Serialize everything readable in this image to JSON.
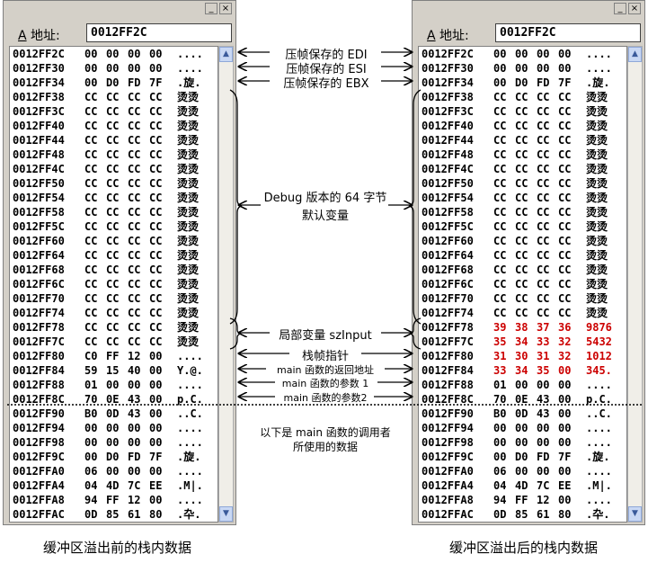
{
  "window": {
    "address_label": "地址:",
    "address_hotkey": "A",
    "address_value": "0012FF2C",
    "minimize_glyph": "_",
    "close_glyph": "×"
  },
  "before": {
    "caption": "缓冲区溢出前的栈内数据",
    "rows": [
      {
        "addr": "0012FF2C",
        "bytes": [
          "00",
          "00",
          "00",
          "00"
        ],
        "ascii": "....",
        "hl": false
      },
      {
        "addr": "0012FF30",
        "bytes": [
          "00",
          "00",
          "00",
          "00"
        ],
        "ascii": "....",
        "hl": false
      },
      {
        "addr": "0012FF34",
        "bytes": [
          "00",
          "D0",
          "FD",
          "7F"
        ],
        "ascii": ".旋.",
        "hl": false
      },
      {
        "addr": "0012FF38",
        "bytes": [
          "CC",
          "CC",
          "CC",
          "CC"
        ],
        "ascii": "烫烫",
        "hl": false
      },
      {
        "addr": "0012FF3C",
        "bytes": [
          "CC",
          "CC",
          "CC",
          "CC"
        ],
        "ascii": "烫烫",
        "hl": false
      },
      {
        "addr": "0012FF40",
        "bytes": [
          "CC",
          "CC",
          "CC",
          "CC"
        ],
        "ascii": "烫烫",
        "hl": false
      },
      {
        "addr": "0012FF44",
        "bytes": [
          "CC",
          "CC",
          "CC",
          "CC"
        ],
        "ascii": "烫烫",
        "hl": false
      },
      {
        "addr": "0012FF48",
        "bytes": [
          "CC",
          "CC",
          "CC",
          "CC"
        ],
        "ascii": "烫烫",
        "hl": false
      },
      {
        "addr": "0012FF4C",
        "bytes": [
          "CC",
          "CC",
          "CC",
          "CC"
        ],
        "ascii": "烫烫",
        "hl": false
      },
      {
        "addr": "0012FF50",
        "bytes": [
          "CC",
          "CC",
          "CC",
          "CC"
        ],
        "ascii": "烫烫",
        "hl": false
      },
      {
        "addr": "0012FF54",
        "bytes": [
          "CC",
          "CC",
          "CC",
          "CC"
        ],
        "ascii": "烫烫",
        "hl": false
      },
      {
        "addr": "0012FF58",
        "bytes": [
          "CC",
          "CC",
          "CC",
          "CC"
        ],
        "ascii": "烫烫",
        "hl": false
      },
      {
        "addr": "0012FF5C",
        "bytes": [
          "CC",
          "CC",
          "CC",
          "CC"
        ],
        "ascii": "烫烫",
        "hl": false
      },
      {
        "addr": "0012FF60",
        "bytes": [
          "CC",
          "CC",
          "CC",
          "CC"
        ],
        "ascii": "烫烫",
        "hl": false
      },
      {
        "addr": "0012FF64",
        "bytes": [
          "CC",
          "CC",
          "CC",
          "CC"
        ],
        "ascii": "烫烫",
        "hl": false
      },
      {
        "addr": "0012FF68",
        "bytes": [
          "CC",
          "CC",
          "CC",
          "CC"
        ],
        "ascii": "烫烫",
        "hl": false
      },
      {
        "addr": "0012FF6C",
        "bytes": [
          "CC",
          "CC",
          "CC",
          "CC"
        ],
        "ascii": "烫烫",
        "hl": false
      },
      {
        "addr": "0012FF70",
        "bytes": [
          "CC",
          "CC",
          "CC",
          "CC"
        ],
        "ascii": "烫烫",
        "hl": false
      },
      {
        "addr": "0012FF74",
        "bytes": [
          "CC",
          "CC",
          "CC",
          "CC"
        ],
        "ascii": "烫烫",
        "hl": false
      },
      {
        "addr": "0012FF78",
        "bytes": [
          "CC",
          "CC",
          "CC",
          "CC"
        ],
        "ascii": "烫烫",
        "hl": false
      },
      {
        "addr": "0012FF7C",
        "bytes": [
          "CC",
          "CC",
          "CC",
          "CC"
        ],
        "ascii": "烫烫",
        "hl": false
      },
      {
        "addr": "0012FF80",
        "bytes": [
          "C0",
          "FF",
          "12",
          "00"
        ],
        "ascii": "....",
        "hl": false
      },
      {
        "addr": "0012FF84",
        "bytes": [
          "59",
          "15",
          "40",
          "00"
        ],
        "ascii": "Y.@.",
        "hl": false
      },
      {
        "addr": "0012FF88",
        "bytes": [
          "01",
          "00",
          "00",
          "00"
        ],
        "ascii": "....",
        "hl": false
      },
      {
        "addr": "0012FF8C",
        "bytes": [
          "70",
          "0E",
          "43",
          "00"
        ],
        "ascii": "p.C.",
        "hl": false
      },
      {
        "addr": "0012FF90",
        "bytes": [
          "B0",
          "0D",
          "43",
          "00"
        ],
        "ascii": "..C.",
        "hl": false
      },
      {
        "addr": "0012FF94",
        "bytes": [
          "00",
          "00",
          "00",
          "00"
        ],
        "ascii": "....",
        "hl": false
      },
      {
        "addr": "0012FF98",
        "bytes": [
          "00",
          "00",
          "00",
          "00"
        ],
        "ascii": "....",
        "hl": false
      },
      {
        "addr": "0012FF9C",
        "bytes": [
          "00",
          "D0",
          "FD",
          "7F"
        ],
        "ascii": ".旋.",
        "hl": false
      },
      {
        "addr": "0012FFA0",
        "bytes": [
          "06",
          "00",
          "00",
          "00"
        ],
        "ascii": "....",
        "hl": false
      },
      {
        "addr": "0012FFA4",
        "bytes": [
          "04",
          "4D",
          "7C",
          "EE"
        ],
        "ascii": ".M|.",
        "hl": false
      },
      {
        "addr": "0012FFA8",
        "bytes": [
          "94",
          "FF",
          "12",
          "00"
        ],
        "ascii": "....",
        "hl": false
      },
      {
        "addr": "0012FFAC",
        "bytes": [
          "0D",
          "85",
          "61",
          "80"
        ],
        "ascii": ".卆.",
        "hl": false
      }
    ]
  },
  "after": {
    "caption": "缓冲区溢出后的栈内数据",
    "rows": [
      {
        "addr": "0012FF2C",
        "bytes": [
          "00",
          "00",
          "00",
          "00"
        ],
        "ascii": "....",
        "hl": false
      },
      {
        "addr": "0012FF30",
        "bytes": [
          "00",
          "00",
          "00",
          "00"
        ],
        "ascii": "....",
        "hl": false
      },
      {
        "addr": "0012FF34",
        "bytes": [
          "00",
          "D0",
          "FD",
          "7F"
        ],
        "ascii": ".旋.",
        "hl": false
      },
      {
        "addr": "0012FF38",
        "bytes": [
          "CC",
          "CC",
          "CC",
          "CC"
        ],
        "ascii": "烫烫",
        "hl": false
      },
      {
        "addr": "0012FF3C",
        "bytes": [
          "CC",
          "CC",
          "CC",
          "CC"
        ],
        "ascii": "烫烫",
        "hl": false
      },
      {
        "addr": "0012FF40",
        "bytes": [
          "CC",
          "CC",
          "CC",
          "CC"
        ],
        "ascii": "烫烫",
        "hl": false
      },
      {
        "addr": "0012FF44",
        "bytes": [
          "CC",
          "CC",
          "CC",
          "CC"
        ],
        "ascii": "烫烫",
        "hl": false
      },
      {
        "addr": "0012FF48",
        "bytes": [
          "CC",
          "CC",
          "CC",
          "CC"
        ],
        "ascii": "烫烫",
        "hl": false
      },
      {
        "addr": "0012FF4C",
        "bytes": [
          "CC",
          "CC",
          "CC",
          "CC"
        ],
        "ascii": "烫烫",
        "hl": false
      },
      {
        "addr": "0012FF50",
        "bytes": [
          "CC",
          "CC",
          "CC",
          "CC"
        ],
        "ascii": "烫烫",
        "hl": false
      },
      {
        "addr": "0012FF54",
        "bytes": [
          "CC",
          "CC",
          "CC",
          "CC"
        ],
        "ascii": "烫烫",
        "hl": false
      },
      {
        "addr": "0012FF58",
        "bytes": [
          "CC",
          "CC",
          "CC",
          "CC"
        ],
        "ascii": "烫烫",
        "hl": false
      },
      {
        "addr": "0012FF5C",
        "bytes": [
          "CC",
          "CC",
          "CC",
          "CC"
        ],
        "ascii": "烫烫",
        "hl": false
      },
      {
        "addr": "0012FF60",
        "bytes": [
          "CC",
          "CC",
          "CC",
          "CC"
        ],
        "ascii": "烫烫",
        "hl": false
      },
      {
        "addr": "0012FF64",
        "bytes": [
          "CC",
          "CC",
          "CC",
          "CC"
        ],
        "ascii": "烫烫",
        "hl": false
      },
      {
        "addr": "0012FF68",
        "bytes": [
          "CC",
          "CC",
          "CC",
          "CC"
        ],
        "ascii": "烫烫",
        "hl": false
      },
      {
        "addr": "0012FF6C",
        "bytes": [
          "CC",
          "CC",
          "CC",
          "CC"
        ],
        "ascii": "烫烫",
        "hl": false
      },
      {
        "addr": "0012FF70",
        "bytes": [
          "CC",
          "CC",
          "CC",
          "CC"
        ],
        "ascii": "烫烫",
        "hl": false
      },
      {
        "addr": "0012FF74",
        "bytes": [
          "CC",
          "CC",
          "CC",
          "CC"
        ],
        "ascii": "烫烫",
        "hl": false
      },
      {
        "addr": "0012FF78",
        "bytes": [
          "39",
          "38",
          "37",
          "36"
        ],
        "ascii": "9876",
        "hl": true
      },
      {
        "addr": "0012FF7C",
        "bytes": [
          "35",
          "34",
          "33",
          "32"
        ],
        "ascii": "5432",
        "hl": true
      },
      {
        "addr": "0012FF80",
        "bytes": [
          "31",
          "30",
          "31",
          "32"
        ],
        "ascii": "1012",
        "hl": true
      },
      {
        "addr": "0012FF84",
        "bytes": [
          "33",
          "34",
          "35",
          "00"
        ],
        "ascii": "345.",
        "hl": true
      },
      {
        "addr": "0012FF88",
        "bytes": [
          "01",
          "00",
          "00",
          "00"
        ],
        "ascii": "....",
        "hl": false
      },
      {
        "addr": "0012FF8C",
        "bytes": [
          "70",
          "0E",
          "43",
          "00"
        ],
        "ascii": "p.C.",
        "hl": false
      },
      {
        "addr": "0012FF90",
        "bytes": [
          "B0",
          "0D",
          "43",
          "00"
        ],
        "ascii": "..C.",
        "hl": false
      },
      {
        "addr": "0012FF94",
        "bytes": [
          "00",
          "00",
          "00",
          "00"
        ],
        "ascii": "....",
        "hl": false
      },
      {
        "addr": "0012FF98",
        "bytes": [
          "00",
          "00",
          "00",
          "00"
        ],
        "ascii": "....",
        "hl": false
      },
      {
        "addr": "0012FF9C",
        "bytes": [
          "00",
          "D0",
          "FD",
          "7F"
        ],
        "ascii": ".旋.",
        "hl": false
      },
      {
        "addr": "0012FFA0",
        "bytes": [
          "06",
          "00",
          "00",
          "00"
        ],
        "ascii": "....",
        "hl": false
      },
      {
        "addr": "0012FFA4",
        "bytes": [
          "04",
          "4D",
          "7C",
          "EE"
        ],
        "ascii": ".M|.",
        "hl": false
      },
      {
        "addr": "0012FFA8",
        "bytes": [
          "94",
          "FF",
          "12",
          "00"
        ],
        "ascii": "....",
        "hl": false
      },
      {
        "addr": "0012FFAC",
        "bytes": [
          "0D",
          "85",
          "61",
          "80"
        ],
        "ascii": ".卆.",
        "hl": false
      }
    ]
  },
  "annotations": {
    "edi": "压帧保存的 EDI",
    "esi": "压帧保存的 ESI",
    "ebx": "压帧保存的 EBX",
    "debug_vars_line1": "Debug 版本的 64 字节",
    "debug_vars_line2": "默认变量",
    "local_var": "局部变量 szInput",
    "frame_ptr": "栈帧指针",
    "ret_addr": "main 函数的返回地址",
    "arg1": "main 函数的参数 1",
    "arg2": "main 函数的参数2",
    "caller_line1": "以下是 main 函数的调用者",
    "caller_line2": "所使用的数据"
  },
  "colors": {
    "overflow_text": "#cc0000"
  }
}
